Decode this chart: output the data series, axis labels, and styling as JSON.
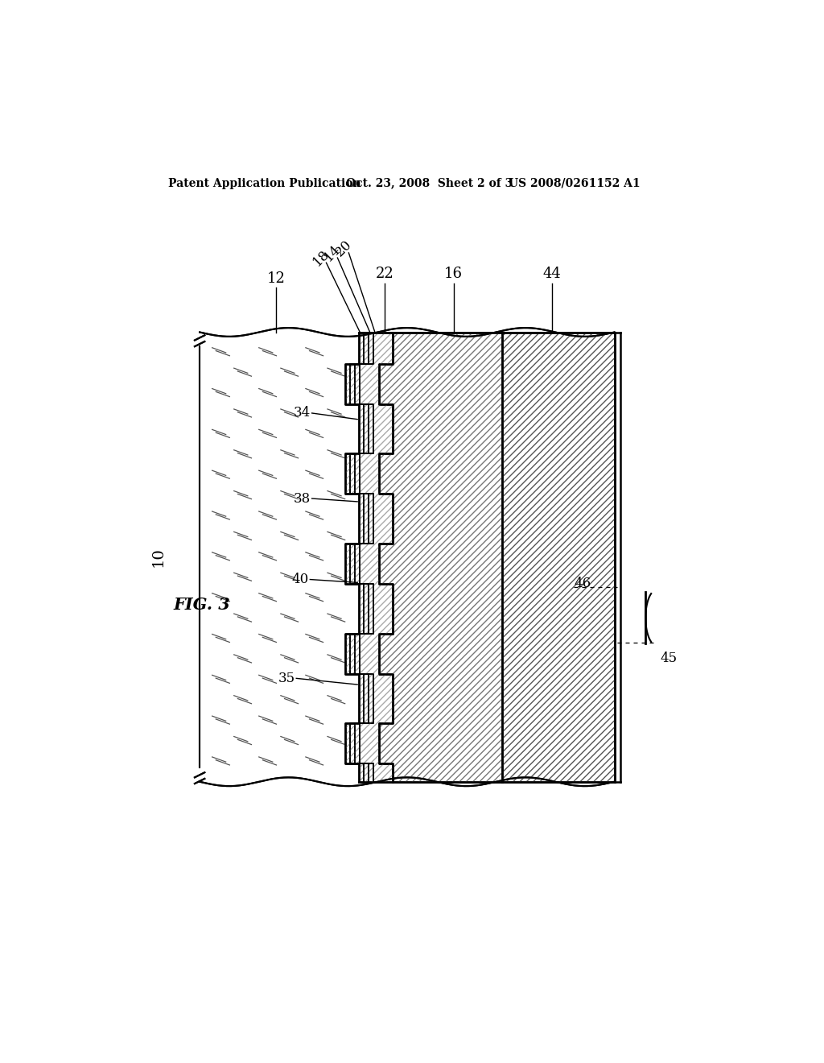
{
  "bg_color": "#ffffff",
  "line_color": "#000000",
  "header_left": "Patent Application Publication",
  "header_mid": "Oct. 23, 2008  Sheet 2 of 3",
  "header_right": "US 2008/0261152 A1",
  "fig_label": "FIG. 3",
  "part_label_10": "10",
  "label_12": "12",
  "label_18": "18",
  "label_14": "14",
  "label_20": "20",
  "label_22": "22",
  "label_16": "16",
  "label_44": "44",
  "label_34": "34",
  "label_38": "38",
  "label_40": "40",
  "label_35": "35",
  "label_46": "46",
  "label_45": "45"
}
